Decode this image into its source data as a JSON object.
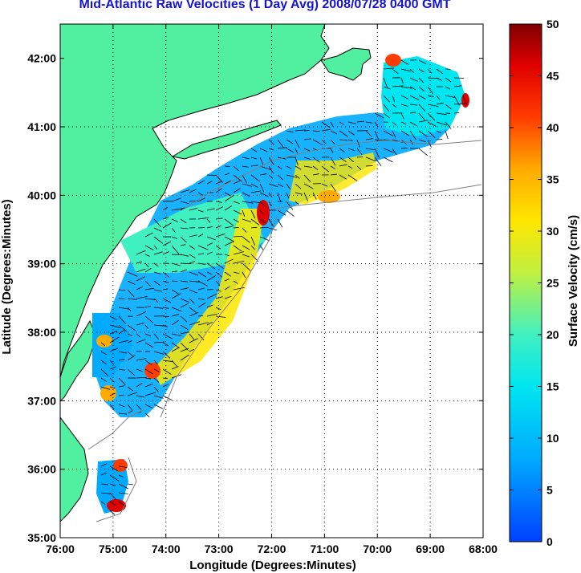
{
  "title": "Mid-Atlantic Raw Velocities (1 Day Avg) 2008/07/28 0400 GMT",
  "x_axis_label": "Longitude (Degrees:Minutes)",
  "y_axis_label": "Latitude (Degrees:Minutes)",
  "x_ticks": [
    "76:00",
    "75:00",
    "74:00",
    "73:00",
    "72:00",
    "71:00",
    "70:00",
    "69:00",
    "68:00"
  ],
  "y_ticks": [
    "42:00",
    "41:00",
    "40:00",
    "39:00",
    "38:00",
    "37:00",
    "36:00",
    "35:00"
  ],
  "colorbar": {
    "label": "Surface Velocity (cm/s)",
    "ticks": [
      "50",
      "45",
      "40",
      "35",
      "30",
      "25",
      "20",
      "15",
      "10",
      "5",
      "0"
    ],
    "range": [
      0,
      50
    ],
    "colormap": "jet"
  },
  "colors": {
    "title": "#1414d2",
    "land": "#50f0a0",
    "grid": "#000000"
  },
  "chart_data": {
    "type": "heatmap",
    "title": "Mid-Atlantic Raw Velocities (1 Day Avg) 2008/07/28 0400 GMT",
    "xlabel": "Longitude (Degrees:Minutes)",
    "ylabel": "Latitude (Degrees:Minutes)",
    "xlim": [
      -76,
      -68
    ],
    "ylim": [
      35,
      42.5
    ],
    "grid": true,
    "value_label": "Surface Velocity (cm/s)",
    "value_range": [
      0,
      50
    ]
  }
}
